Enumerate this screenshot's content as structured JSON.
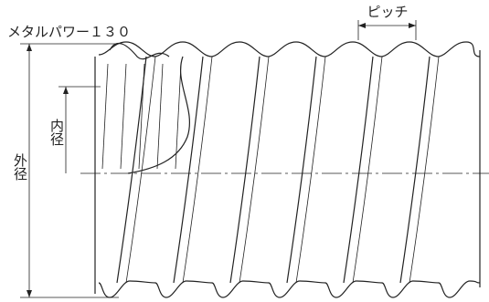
{
  "title": "メタルパワー１３０",
  "dimensions": {
    "pitch": "ピッチ",
    "outer_diameter": "外径",
    "inner_diameter": "内径"
  }
}
